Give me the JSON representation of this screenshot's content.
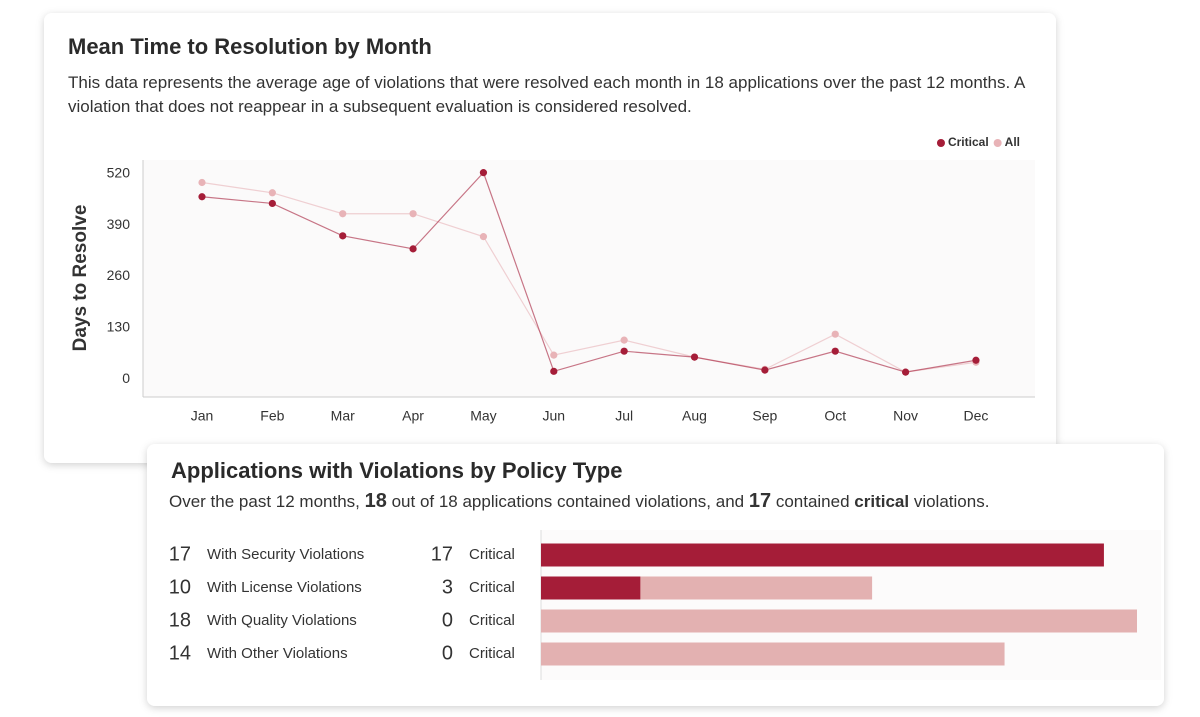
{
  "chart_data": [
    {
      "type": "line",
      "title": "Mean Time to Resolution by Month",
      "description": "This data represents the average age of violations that were resolved each month in 18 applications over the past 12 months. A violation that does not reappear in a subsequent evaluation is considered resolved.",
      "categories": [
        "Jan",
        "Feb",
        "Mar",
        "Apr",
        "May",
        "Jun",
        "Jul",
        "Aug",
        "Sep",
        "Oct",
        "Nov",
        "Dec"
      ],
      "series": [
        {
          "name": "Critical",
          "color": "#a51d38",
          "values": [
            462,
            445,
            363,
            330,
            523,
            20,
            71,
            56,
            23,
            71,
            18,
            48
          ]
        },
        {
          "name": "All",
          "color": "#e8b3b7",
          "values": [
            498,
            472,
            419,
            419,
            361,
            61,
            99,
            56,
            25,
            114,
            18,
            43
          ]
        }
      ],
      "y_label": "Days to Resolve",
      "ylim": [
        -45,
        555
      ],
      "yticks": [
        0,
        130,
        260,
        390,
        520
      ],
      "grid": false,
      "legend": "top-right"
    },
    {
      "type": "bar",
      "orientation": "horizontal",
      "title": "Applications with Violations by Policy Type",
      "subtitle_parts": [
        "Over the past 12 months, ",
        "18",
        " out of 18 applications contained violations, and ",
        "17",
        " contained ",
        "critical",
        " violations."
      ],
      "categories": [
        "With Security Violations",
        "With License Violations",
        "With Quality Violations",
        "With Other Violations"
      ],
      "values": [
        17,
        10,
        18,
        14
      ],
      "color": "#e3b1b1",
      "series": [
        {
          "name": "Critical",
          "color": "#a51d38",
          "values": [
            17,
            3,
            0,
            0
          ]
        }
      ],
      "xlim": [
        0,
        18
      ]
    }
  ]
}
